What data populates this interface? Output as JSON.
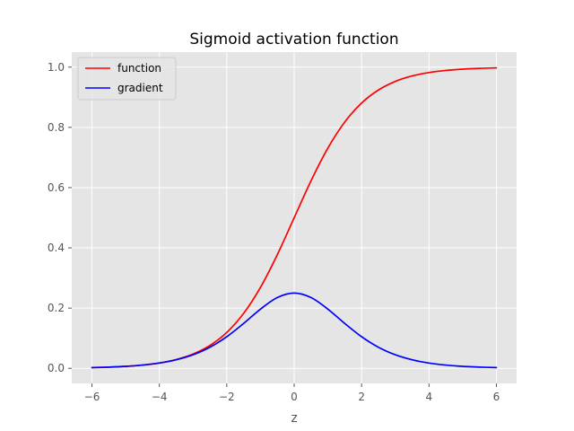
{
  "chart_data": {
    "type": "line",
    "title": "Sigmoid activation function",
    "xlabel": "z",
    "ylabel": "",
    "xlim": [
      -6.6,
      6.6
    ],
    "ylim": [
      -0.05,
      1.05
    ],
    "xticks": [
      -6,
      -4,
      -2,
      0,
      2,
      4,
      6
    ],
    "xtick_labels": [
      "−6",
      "−4",
      "−2",
      "0",
      "2",
      "4",
      "6"
    ],
    "yticks": [
      0.0,
      0.2,
      0.4,
      0.6,
      0.8,
      1.0
    ],
    "ytick_labels": [
      "0.0",
      "0.2",
      "0.4",
      "0.6",
      "0.8",
      "1.0"
    ],
    "grid": true,
    "legend_position": "upper-left",
    "x": [
      -6,
      -5.5,
      -5,
      -4.5,
      -4,
      -3.5,
      -3,
      -2.5,
      -2,
      -1.5,
      -1,
      -0.5,
      0,
      0.5,
      1,
      1.5,
      2,
      2.5,
      3,
      3.5,
      4,
      4.5,
      5,
      5.5,
      6
    ],
    "series": [
      {
        "name": "function",
        "color": "#ff0000",
        "values": [
          0.0025,
          0.0041,
          0.0067,
          0.011,
          0.018,
          0.0293,
          0.0474,
          0.0759,
          0.1192,
          0.1824,
          0.2689,
          0.3775,
          0.5,
          0.6225,
          0.7311,
          0.8176,
          0.8808,
          0.9241,
          0.9526,
          0.9707,
          0.982,
          0.989,
          0.9933,
          0.9959,
          0.9975
        ]
      },
      {
        "name": "gradient",
        "color": "#0000ff",
        "values": [
          0.0025,
          0.0041,
          0.0066,
          0.0109,
          0.0177,
          0.0285,
          0.0452,
          0.0701,
          0.105,
          0.1491,
          0.1966,
          0.235,
          0.25,
          0.235,
          0.1966,
          0.1491,
          0.105,
          0.0701,
          0.0452,
          0.0285,
          0.0177,
          0.0109,
          0.0066,
          0.0041,
          0.0025
        ]
      }
    ]
  },
  "style": {
    "plot_background": "#e5e5e5",
    "grid_color": "#ffffff"
  }
}
